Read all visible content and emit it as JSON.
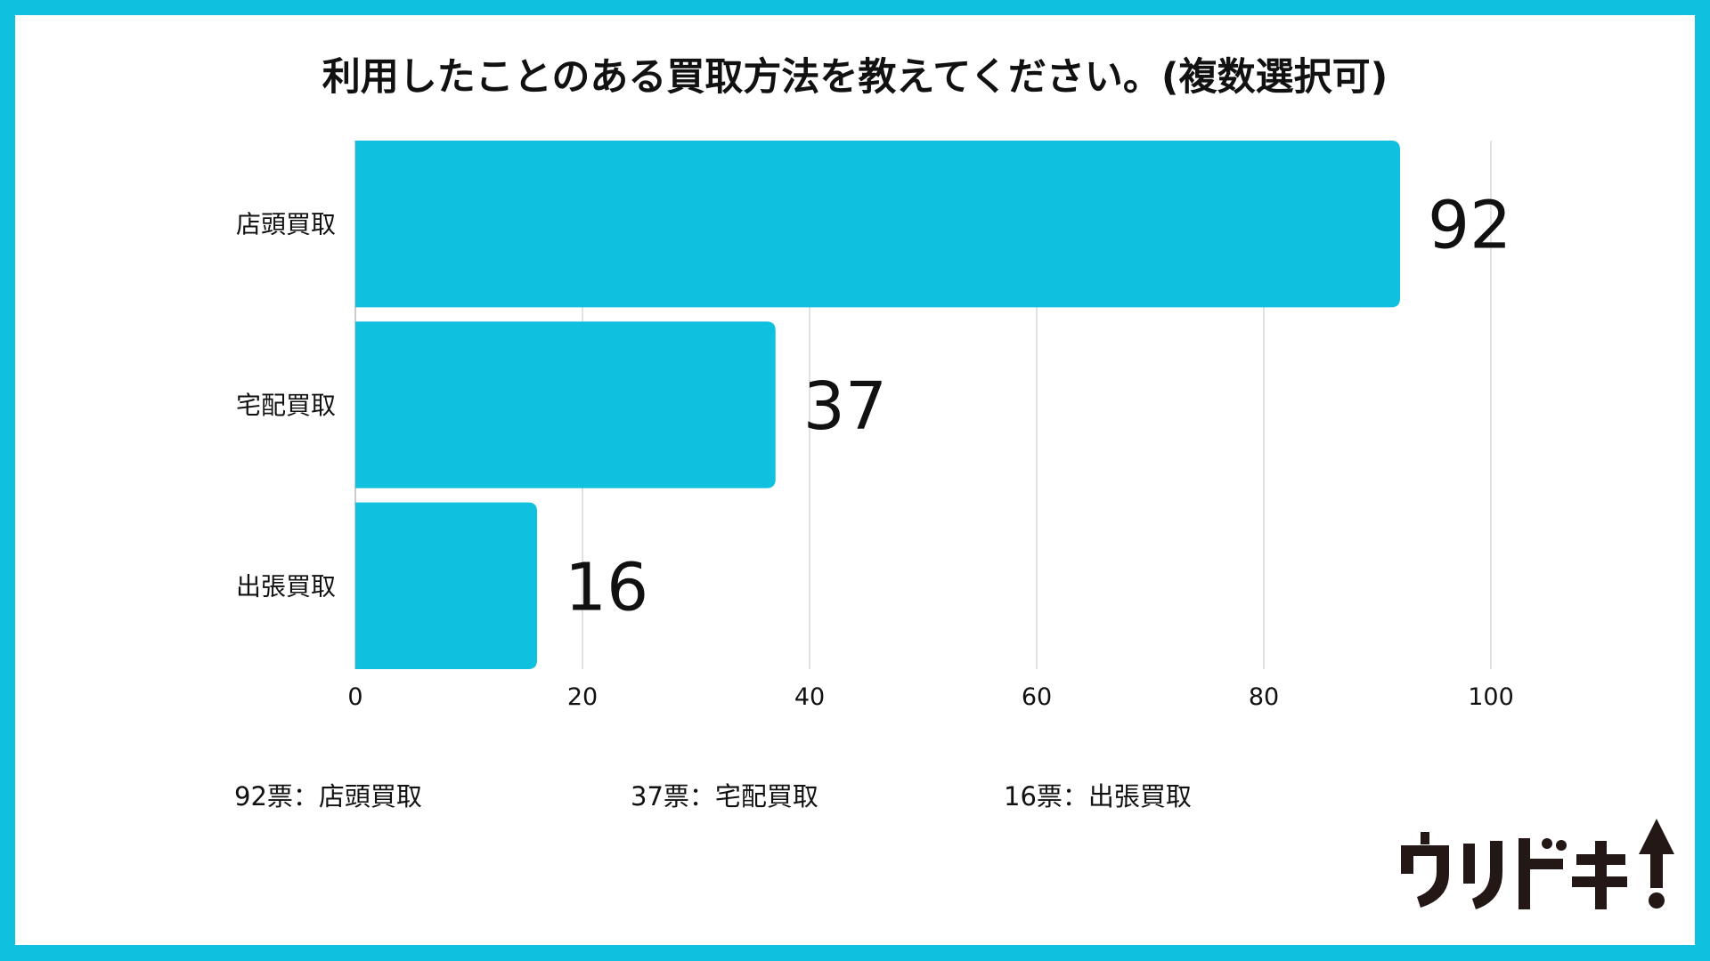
{
  "title": "利用したことのある買取方法を教えてください。(複数選択可)",
  "chart_data": {
    "type": "bar",
    "orientation": "horizontal",
    "categories": [
      "店頭買取",
      "宅配買取",
      "出張買取"
    ],
    "values": [
      92,
      37,
      16
    ],
    "xlim": [
      0,
      100
    ],
    "xticks": [
      0,
      20,
      40,
      60,
      80,
      100
    ],
    "grid": true,
    "bar_color": "#10c0df",
    "data_labels": [
      "92",
      "37",
      "16"
    ]
  },
  "footnotes": [
    "92票：店頭買取",
    "37票：宅配買取",
    "16票：出張買取"
  ],
  "logo": "ウリドキ"
}
